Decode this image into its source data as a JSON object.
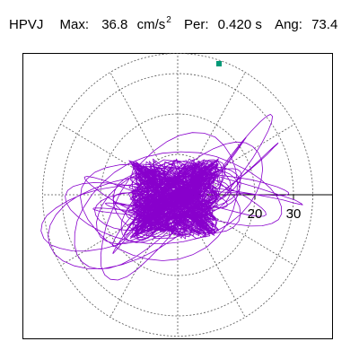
{
  "header": {
    "station": "HPVJ",
    "max_label": "Max:",
    "max_value": "36.8",
    "max_unit": "cm/s",
    "max_unit_exp": "2",
    "per_label": "Per:",
    "per_value": "0.420 s",
    "ang_label": "Ang:",
    "ang_value": "73.4"
  },
  "chart_data": {
    "type": "scatter",
    "title": "",
    "xlabel": "",
    "ylabel": "",
    "radial_ticks": [
      "20",
      "30"
    ],
    "radial_tick_values": [
      20,
      30
    ],
    "rings": [
      10,
      20,
      30
    ],
    "spoke_angles_deg": [
      0,
      30,
      60,
      90,
      120,
      150,
      180,
      210,
      240,
      270,
      300,
      330
    ],
    "max_value": 36.8,
    "max_angle_deg": 73.4,
    "grid": true,
    "colors": {
      "trace": "#8800cc",
      "marker": "#009977",
      "grid": "#555555"
    }
  }
}
